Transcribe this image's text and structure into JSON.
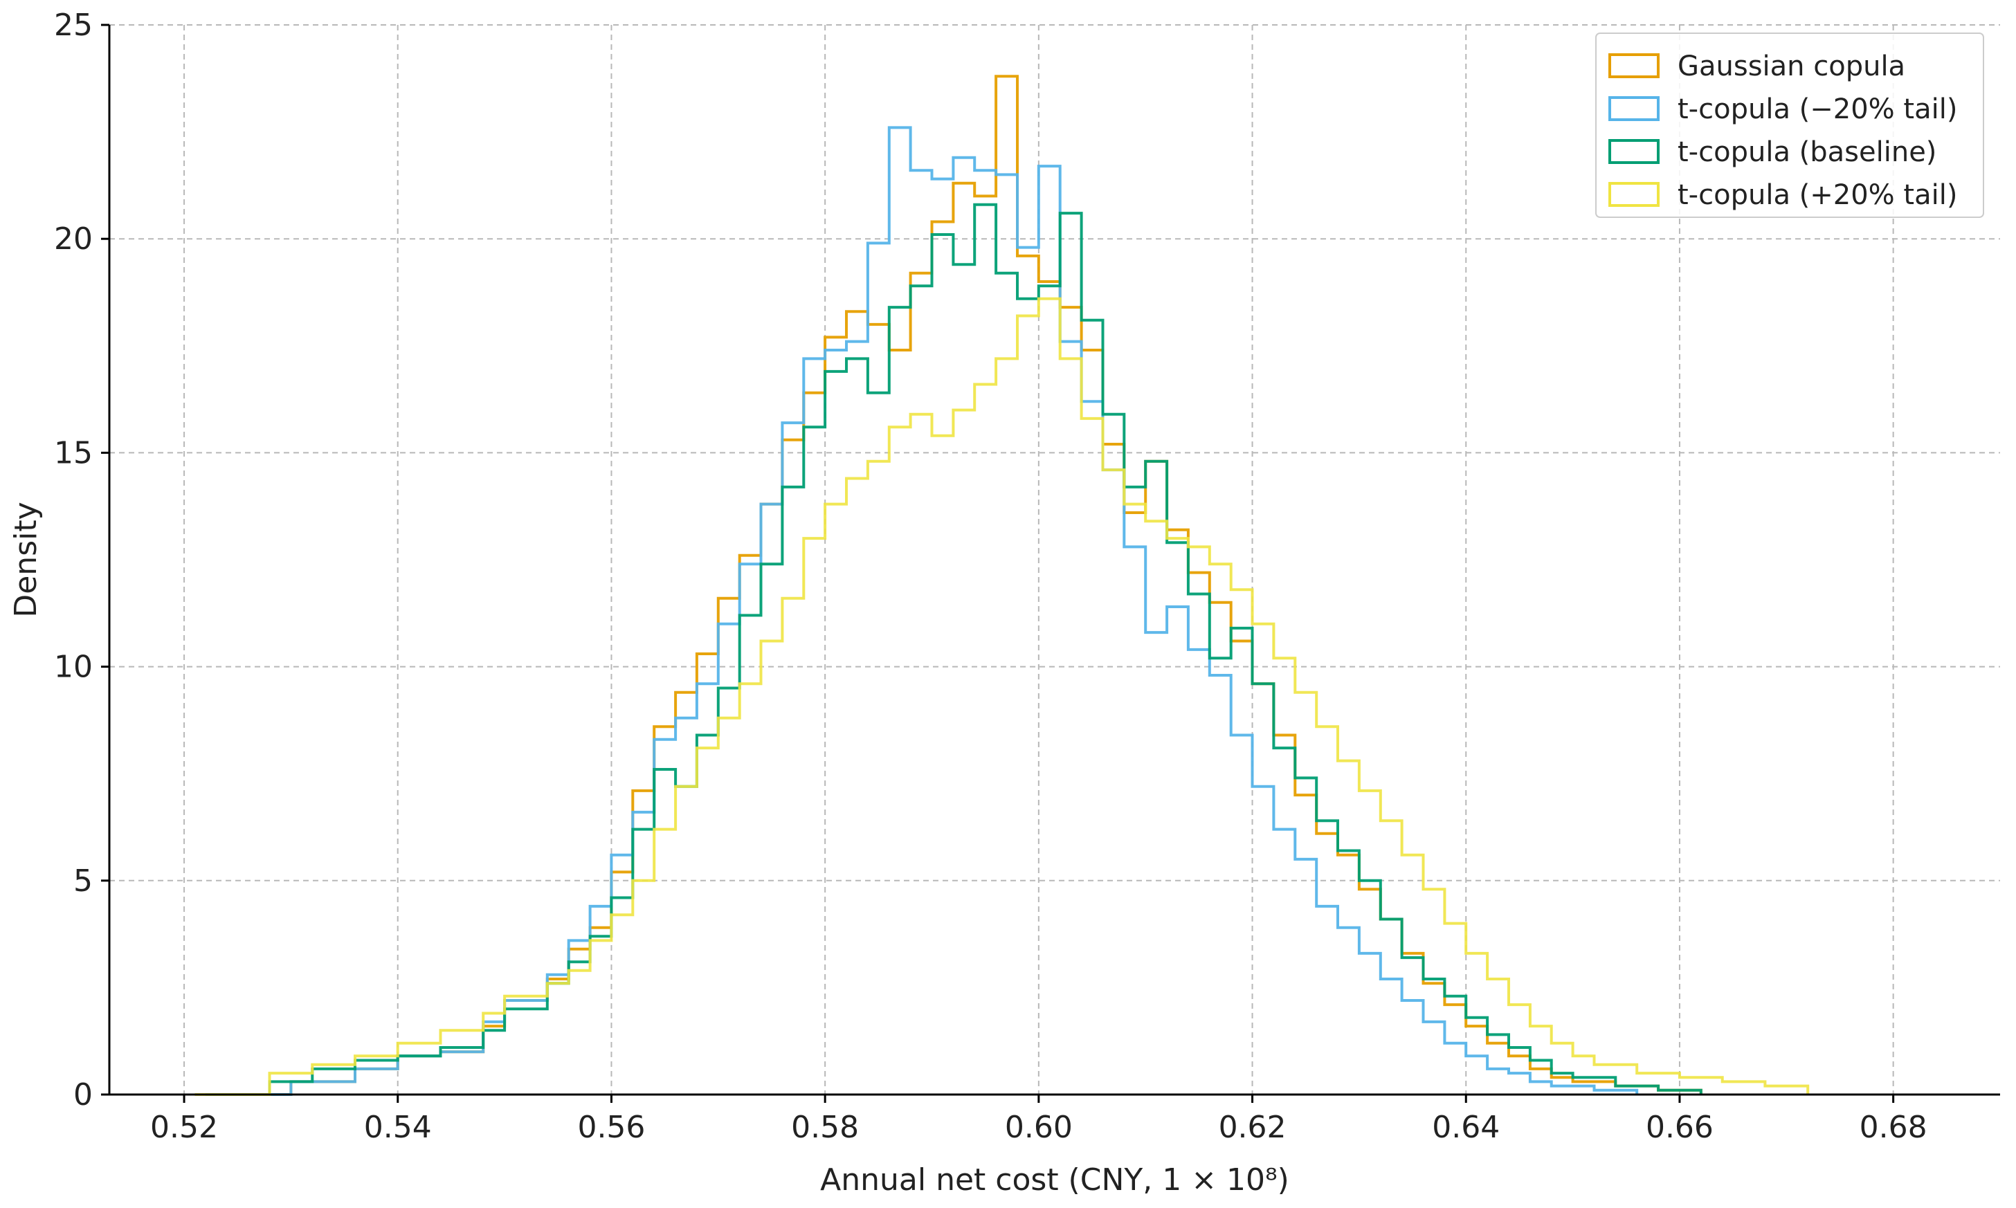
{
  "chart_data": {
    "type": "histogram",
    "xlabel": "Annual net cost (CNY, 1 × 10⁸)",
    "ylabel": "Density",
    "xlim": [
      0.513,
      0.69
    ],
    "ylim": [
      0,
      25
    ],
    "xticks": [
      0.52,
      0.54,
      0.56,
      0.58,
      0.6,
      0.62,
      0.64,
      0.66,
      0.68
    ],
    "xtick_labels": [
      "0.52",
      "0.54",
      "0.56",
      "0.58",
      "0.60",
      "0.62",
      "0.64",
      "0.66",
      "0.68"
    ],
    "yticks": [
      0,
      5,
      10,
      15,
      20,
      25
    ],
    "ytick_labels": [
      "0",
      "5",
      "10",
      "15",
      "20",
      "25"
    ],
    "grid": true,
    "legend_position": "top-right",
    "series": [
      {
        "name": "Gaussian copula",
        "color": "#E69F00",
        "points": [
          [
            0.522,
            0
          ],
          [
            0.53,
            0.3
          ],
          [
            0.536,
            0.6
          ],
          [
            0.54,
            0.9
          ],
          [
            0.544,
            1.0
          ],
          [
            0.548,
            1.6
          ],
          [
            0.55,
            2.2
          ],
          [
            0.554,
            2.7
          ],
          [
            0.556,
            3.4
          ],
          [
            0.558,
            3.9
          ],
          [
            0.56,
            5.2
          ],
          [
            0.562,
            7.1
          ],
          [
            0.564,
            8.6
          ],
          [
            0.566,
            9.4
          ],
          [
            0.568,
            10.3
          ],
          [
            0.57,
            11.6
          ],
          [
            0.572,
            12.6
          ],
          [
            0.574,
            13.8
          ],
          [
            0.576,
            15.3
          ],
          [
            0.578,
            16.4
          ],
          [
            0.58,
            17.7
          ],
          [
            0.582,
            18.3
          ],
          [
            0.584,
            18.0
          ],
          [
            0.586,
            17.4
          ],
          [
            0.588,
            19.2
          ],
          [
            0.59,
            20.4
          ],
          [
            0.592,
            21.3
          ],
          [
            0.594,
            21.0
          ],
          [
            0.596,
            23.8
          ],
          [
            0.598,
            19.6
          ],
          [
            0.6,
            19.0
          ],
          [
            0.602,
            18.4
          ],
          [
            0.604,
            17.4
          ],
          [
            0.606,
            15.2
          ],
          [
            0.608,
            13.6
          ],
          [
            0.61,
            14.8
          ],
          [
            0.612,
            13.2
          ],
          [
            0.614,
            12.2
          ],
          [
            0.616,
            11.5
          ],
          [
            0.618,
            10.6
          ],
          [
            0.62,
            9.6
          ],
          [
            0.622,
            8.4
          ],
          [
            0.624,
            7.0
          ],
          [
            0.626,
            6.1
          ],
          [
            0.628,
            5.6
          ],
          [
            0.63,
            4.8
          ],
          [
            0.632,
            4.1
          ],
          [
            0.634,
            3.3
          ],
          [
            0.636,
            2.6
          ],
          [
            0.638,
            2.1
          ],
          [
            0.64,
            1.6
          ],
          [
            0.642,
            1.2
          ],
          [
            0.644,
            0.9
          ],
          [
            0.646,
            0.6
          ],
          [
            0.648,
            0.4
          ],
          [
            0.65,
            0.3
          ],
          [
            0.654,
            0.2
          ],
          [
            0.658,
            0.1
          ],
          [
            0.662,
            0
          ]
        ]
      },
      {
        "name": "t-copula (−20% tail)",
        "color": "#56B4E9",
        "points": [
          [
            0.522,
            0
          ],
          [
            0.53,
            0.3
          ],
          [
            0.536,
            0.6
          ],
          [
            0.54,
            0.9
          ],
          [
            0.544,
            1.0
          ],
          [
            0.548,
            1.7
          ],
          [
            0.55,
            2.2
          ],
          [
            0.554,
            2.8
          ],
          [
            0.556,
            3.6
          ],
          [
            0.558,
            4.4
          ],
          [
            0.56,
            5.6
          ],
          [
            0.562,
            6.6
          ],
          [
            0.564,
            8.3
          ],
          [
            0.566,
            8.8
          ],
          [
            0.568,
            9.6
          ],
          [
            0.57,
            11.0
          ],
          [
            0.572,
            12.4
          ],
          [
            0.574,
            13.8
          ],
          [
            0.576,
            15.7
          ],
          [
            0.578,
            17.2
          ],
          [
            0.58,
            17.4
          ],
          [
            0.582,
            17.6
          ],
          [
            0.584,
            19.9
          ],
          [
            0.586,
            22.6
          ],
          [
            0.588,
            21.6
          ],
          [
            0.59,
            21.4
          ],
          [
            0.592,
            21.9
          ],
          [
            0.594,
            21.6
          ],
          [
            0.596,
            21.5
          ],
          [
            0.598,
            19.8
          ],
          [
            0.6,
            21.7
          ],
          [
            0.602,
            17.6
          ],
          [
            0.604,
            16.2
          ],
          [
            0.606,
            14.6
          ],
          [
            0.608,
            12.8
          ],
          [
            0.61,
            10.8
          ],
          [
            0.612,
            11.4
          ],
          [
            0.614,
            10.4
          ],
          [
            0.616,
            9.8
          ],
          [
            0.618,
            8.4
          ],
          [
            0.62,
            7.2
          ],
          [
            0.622,
            6.2
          ],
          [
            0.624,
            5.5
          ],
          [
            0.626,
            4.4
          ],
          [
            0.628,
            3.9
          ],
          [
            0.63,
            3.3
          ],
          [
            0.632,
            2.7
          ],
          [
            0.634,
            2.2
          ],
          [
            0.636,
            1.7
          ],
          [
            0.638,
            1.2
          ],
          [
            0.64,
            0.9
          ],
          [
            0.642,
            0.6
          ],
          [
            0.644,
            0.5
          ],
          [
            0.646,
            0.3
          ],
          [
            0.648,
            0.2
          ],
          [
            0.652,
            0.1
          ],
          [
            0.656,
            0
          ]
        ]
      },
      {
        "name": "t-copula (baseline)",
        "color": "#009E73",
        "points": [
          [
            0.522,
            0
          ],
          [
            0.528,
            0.3
          ],
          [
            0.532,
            0.6
          ],
          [
            0.536,
            0.8
          ],
          [
            0.54,
            0.9
          ],
          [
            0.544,
            1.1
          ],
          [
            0.548,
            1.5
          ],
          [
            0.55,
            2.0
          ],
          [
            0.554,
            2.6
          ],
          [
            0.556,
            3.1
          ],
          [
            0.558,
            3.7
          ],
          [
            0.56,
            4.6
          ],
          [
            0.562,
            6.2
          ],
          [
            0.564,
            7.6
          ],
          [
            0.566,
            7.2
          ],
          [
            0.568,
            8.4
          ],
          [
            0.57,
            9.5
          ],
          [
            0.572,
            11.2
          ],
          [
            0.574,
            12.4
          ],
          [
            0.576,
            14.2
          ],
          [
            0.578,
            15.6
          ],
          [
            0.58,
            16.9
          ],
          [
            0.582,
            17.2
          ],
          [
            0.584,
            16.4
          ],
          [
            0.586,
            18.4
          ],
          [
            0.588,
            18.9
          ],
          [
            0.59,
            20.1
          ],
          [
            0.592,
            19.4
          ],
          [
            0.594,
            20.8
          ],
          [
            0.596,
            19.2
          ],
          [
            0.598,
            18.6
          ],
          [
            0.6,
            18.9
          ],
          [
            0.602,
            20.6
          ],
          [
            0.604,
            18.1
          ],
          [
            0.606,
            15.9
          ],
          [
            0.608,
            14.2
          ],
          [
            0.61,
            14.8
          ],
          [
            0.612,
            12.9
          ],
          [
            0.614,
            11.7
          ],
          [
            0.616,
            10.2
          ],
          [
            0.618,
            10.9
          ],
          [
            0.62,
            9.6
          ],
          [
            0.622,
            8.1
          ],
          [
            0.624,
            7.4
          ],
          [
            0.626,
            6.4
          ],
          [
            0.628,
            5.7
          ],
          [
            0.63,
            5.0
          ],
          [
            0.632,
            4.1
          ],
          [
            0.634,
            3.2
          ],
          [
            0.636,
            2.7
          ],
          [
            0.638,
            2.3
          ],
          [
            0.64,
            1.8
          ],
          [
            0.642,
            1.4
          ],
          [
            0.644,
            1.1
          ],
          [
            0.646,
            0.8
          ],
          [
            0.648,
            0.5
          ],
          [
            0.65,
            0.4
          ],
          [
            0.654,
            0.2
          ],
          [
            0.658,
            0.1
          ],
          [
            0.662,
            0
          ]
        ]
      },
      {
        "name": "t-copula (+20% tail)",
        "color": "#F0E442",
        "points": [
          [
            0.521,
            0
          ],
          [
            0.528,
            0.5
          ],
          [
            0.532,
            0.7
          ],
          [
            0.536,
            0.9
          ],
          [
            0.54,
            1.2
          ],
          [
            0.544,
            1.5
          ],
          [
            0.548,
            1.9
          ],
          [
            0.55,
            2.3
          ],
          [
            0.554,
            2.6
          ],
          [
            0.556,
            2.9
          ],
          [
            0.558,
            3.6
          ],
          [
            0.56,
            4.2
          ],
          [
            0.562,
            5.0
          ],
          [
            0.564,
            6.2
          ],
          [
            0.566,
            7.2
          ],
          [
            0.568,
            8.1
          ],
          [
            0.57,
            8.8
          ],
          [
            0.572,
            9.6
          ],
          [
            0.574,
            10.6
          ],
          [
            0.576,
            11.6
          ],
          [
            0.578,
            13.0
          ],
          [
            0.58,
            13.8
          ],
          [
            0.582,
            14.4
          ],
          [
            0.584,
            14.8
          ],
          [
            0.586,
            15.6
          ],
          [
            0.588,
            15.9
          ],
          [
            0.59,
            15.4
          ],
          [
            0.592,
            16.0
          ],
          [
            0.594,
            16.6
          ],
          [
            0.596,
            17.2
          ],
          [
            0.598,
            18.2
          ],
          [
            0.6,
            18.6
          ],
          [
            0.602,
            17.2
          ],
          [
            0.604,
            15.8
          ],
          [
            0.606,
            14.6
          ],
          [
            0.608,
            13.8
          ],
          [
            0.61,
            13.4
          ],
          [
            0.612,
            13.0
          ],
          [
            0.614,
            12.8
          ],
          [
            0.616,
            12.4
          ],
          [
            0.618,
            11.8
          ],
          [
            0.62,
            11.0
          ],
          [
            0.622,
            10.2
          ],
          [
            0.624,
            9.4
          ],
          [
            0.626,
            8.6
          ],
          [
            0.628,
            7.8
          ],
          [
            0.63,
            7.1
          ],
          [
            0.632,
            6.4
          ],
          [
            0.634,
            5.6
          ],
          [
            0.636,
            4.8
          ],
          [
            0.638,
            4.0
          ],
          [
            0.64,
            3.3
          ],
          [
            0.642,
            2.7
          ],
          [
            0.644,
            2.1
          ],
          [
            0.646,
            1.6
          ],
          [
            0.648,
            1.2
          ],
          [
            0.65,
            0.9
          ],
          [
            0.652,
            0.7
          ],
          [
            0.656,
            0.5
          ],
          [
            0.66,
            0.4
          ],
          [
            0.664,
            0.3
          ],
          [
            0.668,
            0.2
          ],
          [
            0.672,
            0
          ]
        ]
      }
    ]
  }
}
